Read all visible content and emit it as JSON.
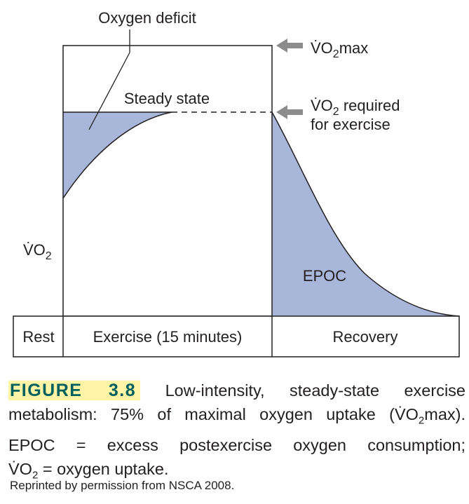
{
  "diagram": {
    "labels": {
      "oxygen_deficit": "Oxygen deficit",
      "steady_state": "Steady state",
      "vo2max": "V̇O2max",
      "vo2_required_line1": "V̇O2 required",
      "vo2_required_line2": "for exercise",
      "vo2_axis": "V̇O2",
      "epoc": "EPOC"
    },
    "phases": [
      "Rest",
      "Exercise (15 minutes)",
      "Recovery"
    ],
    "colors": {
      "shade": "#a7b6d9",
      "stroke": "#231f20",
      "arrow": "#8c8c8c"
    }
  },
  "caption": {
    "figure_label": "FIGURE 3.8",
    "line1": "Low-intensity, steady-state exercise",
    "line2": "metabolism: 75% of maximal oxygen uptake (V̇O2max).",
    "line3": "EPOC = excess postexercise oxygen consumption;",
    "line4": "V̇O2 = oxygen uptake.",
    "credit": "Reprinted by permission from NSCA 2008."
  }
}
